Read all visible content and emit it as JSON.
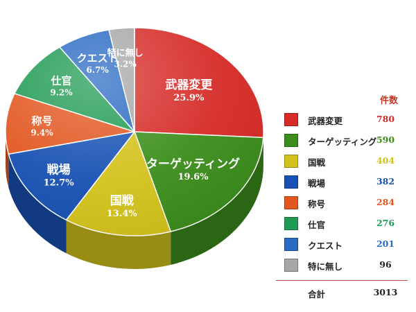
{
  "chart_data": {
    "type": "pie",
    "categories": [
      "武器変更",
      "ターゲッティング",
      "国戦",
      "戦場",
      "称号",
      "仕官",
      "クエスト",
      "特に無し"
    ],
    "values": [
      780,
      590,
      404,
      382,
      284,
      276,
      201,
      96
    ],
    "percent_labels": [
      "25.9%",
      "19.6%",
      "13.4%",
      "12.7%",
      "9.4%",
      "9.2%",
      "6.7%",
      "3.2%"
    ],
    "colors": [
      "#d62b27",
      "#3c8e1c",
      "#d3c21c",
      "#1751b3",
      "#e2561f",
      "#1f9a52",
      "#2a6ac2",
      "#a7a7a7"
    ],
    "legend_position": "right",
    "legend": {
      "count_header": "件数",
      "total_label": "合計",
      "total_value": "3013"
    }
  }
}
